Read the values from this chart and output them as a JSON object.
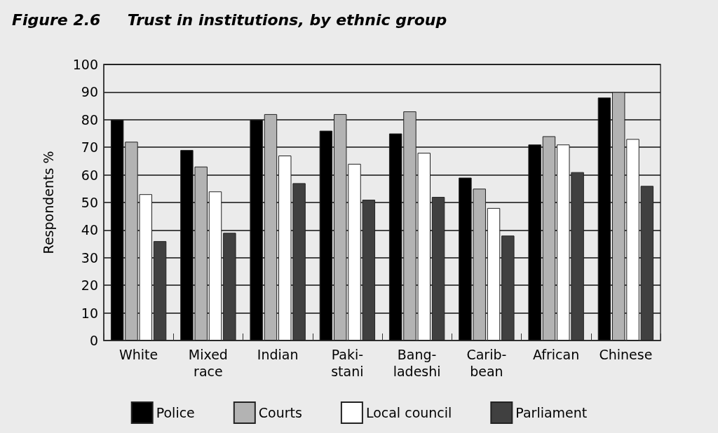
{
  "chart_data": {
    "type": "bar",
    "title": "Figure 2.6     Trust in institutions, by ethnic group",
    "ylabel": "Respondents %",
    "categories": [
      "White",
      "Mixed\nrace",
      "Indian",
      "Paki-\nstani",
      "Bang-\nladeshi",
      "Carib-\nbean",
      "African",
      "Chinese"
    ],
    "series": [
      {
        "name": "Police",
        "color": "#000000",
        "values": [
          80,
          69,
          80,
          76,
          75,
          59,
          71,
          88
        ]
      },
      {
        "name": "Courts",
        "color": "#b3b3b3",
        "values": [
          72,
          63,
          82,
          82,
          83,
          55,
          74,
          90
        ]
      },
      {
        "name": "Local council",
        "color": "#ffffff",
        "values": [
          53,
          54,
          67,
          64,
          68,
          48,
          71,
          73
        ]
      },
      {
        "name": "Parliament",
        "color": "#404040",
        "values": [
          36,
          39,
          57,
          51,
          52,
          38,
          61,
          56
        ]
      }
    ],
    "ylim": [
      0,
      100
    ],
    "yticks": [
      0,
      10,
      20,
      30,
      40,
      50,
      60,
      70,
      80,
      90,
      100
    ],
    "grid": "y",
    "legend": "bottom"
  }
}
